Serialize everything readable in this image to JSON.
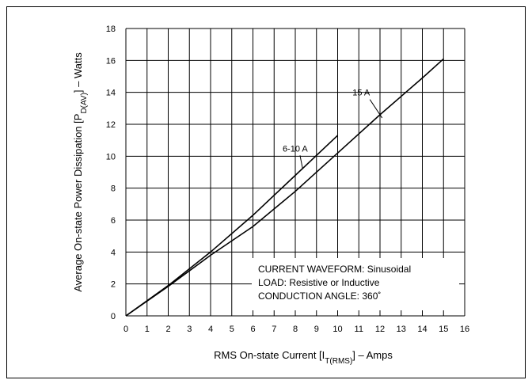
{
  "chart_data": {
    "type": "line",
    "title": "",
    "xlabel": {
      "prefix": "RMS On-state Current [I",
      "sub": "T(RMS)",
      "suffix": "] – Amps"
    },
    "ylabel": {
      "prefix": "Average On-state Power Dissipation [P",
      "sub": "D(AV)",
      "suffix": "] – Watts"
    },
    "xlim": [
      0,
      16
    ],
    "ylim": [
      0,
      18
    ],
    "xticks": [
      0,
      1,
      2,
      3,
      4,
      5,
      6,
      7,
      8,
      9,
      10,
      11,
      12,
      13,
      14,
      15,
      16
    ],
    "yticks": [
      0,
      2,
      4,
      6,
      8,
      10,
      12,
      14,
      16,
      18
    ],
    "grid": true,
    "series": [
      {
        "name": "6-10 A",
        "x": [
          0,
          2,
          4,
          6,
          8,
          10
        ],
        "y": [
          0,
          1.9,
          4.0,
          6.3,
          8.8,
          11.3
        ]
      },
      {
        "name": "15 A",
        "x": [
          0,
          2,
          4,
          6,
          8,
          10,
          12,
          14,
          15
        ],
        "y": [
          0,
          1.85,
          3.8,
          5.6,
          7.8,
          10.2,
          12.6,
          14.9,
          16.1
        ]
      }
    ],
    "annotations": [
      {
        "text": "6-10 A",
        "label_x": 7.4,
        "label_y": 10.3,
        "arrow_to": [
          8.35,
          9.2
        ]
      },
      {
        "text": "15 A",
        "label_x": 10.7,
        "label_y": 13.8,
        "arrow_to": [
          12.1,
          12.4
        ]
      }
    ],
    "notes": [
      "CURRENT WAVEFORM: Sinusoidal",
      "LOAD: Resistive or Inductive",
      "CONDUCTION ANGLE: 360˚"
    ]
  }
}
